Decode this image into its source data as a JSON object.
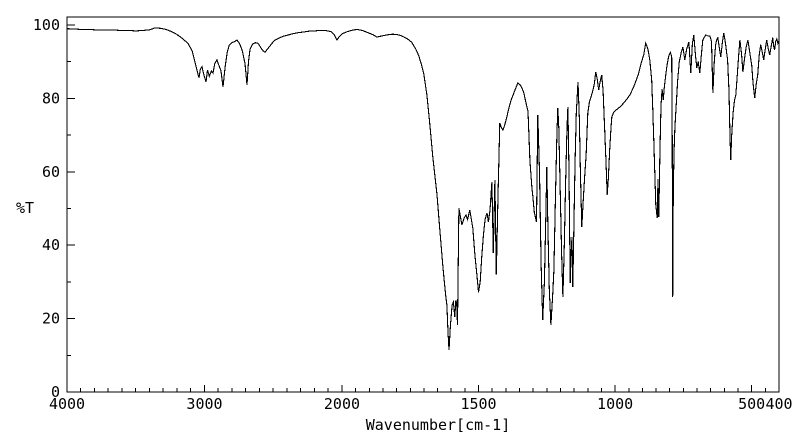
{
  "window": {
    "background": "#ffffff",
    "foreground": "#000000"
  },
  "chart_data": {
    "type": "line",
    "title": "",
    "xlabel": "Wavenumber[cm-1]",
    "ylabel": "%T",
    "grid": false,
    "legend": false,
    "x_axis": {
      "range": [
        4000,
        400
      ],
      "reversed": true,
      "scale_break_at": 2000,
      "note": "region 4000-2000 compressed, 2000-400 expanded (double scale)",
      "major_ticks": [
        4000,
        3000,
        2000,
        1500,
        1000,
        500,
        400
      ],
      "major_tick_labels": [
        "4000",
        "3000",
        "2000",
        "1500",
        "1000",
        "500",
        "400"
      ],
      "minor_tick_step_above_break": 100,
      "minor_tick_step_below_break": 50
    },
    "y_axis": {
      "range": [
        0,
        100
      ],
      "major_ticks": [
        0,
        20,
        40,
        60,
        80,
        100
      ],
      "major_tick_labels": [
        "0",
        "20",
        "40",
        "60",
        "80",
        "100"
      ],
      "minor_tick_step": 10
    },
    "series": [
      {
        "name": "ir-transmittance-trace",
        "color": "#000000",
        "points": [
          [
            4000,
            99
          ],
          [
            3950,
            98.9
          ],
          [
            3900,
            98.8
          ],
          [
            3850,
            98.8
          ],
          [
            3800,
            98.7
          ],
          [
            3750,
            98.7
          ],
          [
            3700,
            98.6
          ],
          [
            3650,
            98.6
          ],
          [
            3600,
            98.5
          ],
          [
            3550,
            98.5
          ],
          [
            3500,
            98.4
          ],
          [
            3450,
            98.5
          ],
          [
            3400,
            98.7
          ],
          [
            3360,
            99.2
          ],
          [
            3320,
            99.1
          ],
          [
            3280,
            98.8
          ],
          [
            3240,
            98.2
          ],
          [
            3200,
            97.4
          ],
          [
            3160,
            96.3
          ],
          [
            3120,
            95
          ],
          [
            3090,
            93
          ],
          [
            3070,
            90
          ],
          [
            3050,
            87
          ],
          [
            3040,
            85.6
          ],
          [
            3030,
            88
          ],
          [
            3018,
            88.6
          ],
          [
            3005,
            86.5
          ],
          [
            2989,
            84.5
          ],
          [
            2978,
            87.7
          ],
          [
            2965,
            86
          ],
          [
            2950,
            87.5
          ],
          [
            2938,
            86.9
          ],
          [
            2925,
            89.5
          ],
          [
            2909,
            90.5
          ],
          [
            2895,
            89
          ],
          [
            2880,
            87.5
          ],
          [
            2865,
            83.1
          ],
          [
            2850,
            88.5
          ],
          [
            2835,
            92.5
          ],
          [
            2820,
            94.5
          ],
          [
            2800,
            95.2
          ],
          [
            2780,
            95.5
          ],
          [
            2764,
            95.9
          ],
          [
            2745,
            95
          ],
          [
            2725,
            93
          ],
          [
            2705,
            89.5
          ],
          [
            2691,
            83.7
          ],
          [
            2680,
            90
          ],
          [
            2668,
            93.5
          ],
          [
            2650,
            94.8
          ],
          [
            2630,
            95.2
          ],
          [
            2610,
            95
          ],
          [
            2590,
            93.8
          ],
          [
            2575,
            93
          ],
          [
            2560,
            92.6
          ],
          [
            2545,
            93.3
          ],
          [
            2530,
            94
          ],
          [
            2510,
            95
          ],
          [
            2490,
            95.8
          ],
          [
            2460,
            96.4
          ],
          [
            2430,
            96.9
          ],
          [
            2400,
            97.2
          ],
          [
            2360,
            97.6
          ],
          [
            2320,
            97.9
          ],
          [
            2280,
            98.1
          ],
          [
            2240,
            98.3
          ],
          [
            2200,
            98.4
          ],
          [
            2160,
            98.5
          ],
          [
            2120,
            98.5
          ],
          [
            2080,
            98.2
          ],
          [
            2055,
            97.3
          ],
          [
            2036,
            95.9
          ],
          [
            2020,
            96.8
          ],
          [
            2000,
            97.6
          ],
          [
            1980,
            98.2
          ],
          [
            1960,
            98.6
          ],
          [
            1945,
            98.8
          ],
          [
            1925,
            98.5
          ],
          [
            1905,
            97.9
          ],
          [
            1885,
            97.3
          ],
          [
            1872,
            96.7
          ],
          [
            1855,
            97
          ],
          [
            1835,
            97.3
          ],
          [
            1815,
            97.5
          ],
          [
            1800,
            97.4
          ],
          [
            1788,
            97.2
          ],
          [
            1775,
            96.8
          ],
          [
            1760,
            96.2
          ],
          [
            1745,
            95.3
          ],
          [
            1730,
            93.5
          ],
          [
            1720,
            91.8
          ],
          [
            1710,
            89.5
          ],
          [
            1700,
            86.5
          ],
          [
            1689,
            80.9
          ],
          [
            1678,
            72.7
          ],
          [
            1667,
            63.8
          ],
          [
            1652,
            53.7
          ],
          [
            1641,
            43.6
          ],
          [
            1630,
            33.8
          ],
          [
            1620,
            26
          ],
          [
            1616,
            23.7
          ],
          [
            1612,
            16.3
          ],
          [
            1608,
            11.4
          ],
          [
            1603,
            18
          ],
          [
            1597,
            23.7
          ],
          [
            1592,
            24.5
          ],
          [
            1587,
            20.4
          ],
          [
            1583,
            25.1
          ],
          [
            1580,
            24
          ],
          [
            1577,
            18.3
          ],
          [
            1572,
            50.1
          ],
          [
            1561,
            45.5
          ],
          [
            1552,
            47.5
          ],
          [
            1546,
            48.2
          ],
          [
            1540,
            47
          ],
          [
            1532,
            49.6
          ],
          [
            1521,
            44.7
          ],
          [
            1513,
            37
          ],
          [
            1506,
            31.9
          ],
          [
            1500,
            27.2
          ],
          [
            1494,
            30
          ],
          [
            1488,
            37
          ],
          [
            1482,
            43
          ],
          [
            1476,
            47
          ],
          [
            1469,
            48.8
          ],
          [
            1464,
            46.3
          ],
          [
            1458,
            49.6
          ],
          [
            1451,
            57.2
          ],
          [
            1446,
            37.9
          ],
          [
            1440,
            57.8
          ],
          [
            1435,
            32
          ],
          [
            1429,
            52.3
          ],
          [
            1422,
            73.3
          ],
          [
            1416,
            72
          ],
          [
            1411,
            71.4
          ],
          [
            1405,
            72.5
          ],
          [
            1398,
            74.5
          ],
          [
            1390,
            77
          ],
          [
            1381,
            79.5
          ],
          [
            1372,
            81.2
          ],
          [
            1363,
            83
          ],
          [
            1356,
            84.2
          ],
          [
            1349,
            83.8
          ],
          [
            1342,
            83
          ],
          [
            1334,
            81.5
          ],
          [
            1327,
            79
          ],
          [
            1319,
            76.5
          ],
          [
            1312,
            63.2
          ],
          [
            1305,
            56
          ],
          [
            1301,
            53.1
          ],
          [
            1296,
            49
          ],
          [
            1288,
            46.3
          ],
          [
            1283,
            75.5
          ],
          [
            1277,
            60
          ],
          [
            1271,
            35
          ],
          [
            1265,
            19.6
          ],
          [
            1259,
            30
          ],
          [
            1253,
            50
          ],
          [
            1250,
            61.3
          ],
          [
            1246,
            45
          ],
          [
            1241,
            28
          ],
          [
            1235,
            18.3
          ],
          [
            1229,
            26
          ],
          [
            1224,
            33.2
          ],
          [
            1218,
            55
          ],
          [
            1213,
            70
          ],
          [
            1210,
            77.4
          ],
          [
            1206,
            72
          ],
          [
            1201,
            55
          ],
          [
            1196,
            38
          ],
          [
            1191,
            25.9
          ],
          [
            1186,
            40
          ],
          [
            1181,
            58
          ],
          [
            1176,
            72
          ],
          [
            1173,
            77.7
          ],
          [
            1169,
            60
          ],
          [
            1166,
            40
          ],
          [
            1164,
            29.7
          ],
          [
            1161,
            38
          ],
          [
            1158,
            42.2
          ],
          [
            1155,
            28.6
          ],
          [
            1151,
            45
          ],
          [
            1147,
            62
          ],
          [
            1142,
            76
          ],
          [
            1136,
            84.5
          ],
          [
            1131,
            75
          ],
          [
            1127,
            60
          ],
          [
            1122,
            45
          ],
          [
            1117,
            52
          ],
          [
            1112,
            58
          ],
          [
            1106,
            65
          ],
          [
            1100,
            76
          ],
          [
            1094,
            79
          ],
          [
            1088,
            80.5
          ],
          [
            1082,
            82
          ],
          [
            1076,
            84
          ],
          [
            1071,
            87.2
          ],
          [
            1066,
            85.5
          ],
          [
            1060,
            82.3
          ],
          [
            1055,
            84.5
          ],
          [
            1049,
            86.4
          ],
          [
            1044,
            82
          ],
          [
            1038,
            71.4
          ],
          [
            1033,
            62
          ],
          [
            1029,
            53.7
          ],
          [
            1025,
            58
          ],
          [
            1020,
            66
          ],
          [
            1015,
            72
          ],
          [
            1012,
            74.9
          ],
          [
            1005,
            76.2
          ],
          [
            997,
            76.8
          ],
          [
            985,
            77.5
          ],
          [
            975,
            78.2
          ],
          [
            960,
            79.5
          ],
          [
            945,
            81
          ],
          [
            930,
            83.5
          ],
          [
            915,
            86.5
          ],
          [
            905,
            89.5
          ],
          [
            895,
            92
          ],
          [
            888,
            95.1
          ],
          [
            880,
            93.5
          ],
          [
            873,
            90.5
          ],
          [
            866,
            85
          ],
          [
            862,
            76.8
          ],
          [
            857,
            65
          ],
          [
            851,
            51
          ],
          [
            846,
            47.4
          ],
          [
            843,
            58
          ],
          [
            840,
            47.7
          ],
          [
            836,
            65
          ],
          [
            832,
            78
          ],
          [
            828,
            82.5
          ],
          [
            824,
            79.5
          ],
          [
            820,
            83
          ],
          [
            815,
            86
          ],
          [
            810,
            89
          ],
          [
            804,
            91.5
          ],
          [
            798,
            92.5
          ],
          [
            793,
            91.5
          ],
          [
            791,
            70
          ],
          [
            789,
            25.9
          ],
          [
            787,
            55
          ],
          [
            784,
            66
          ],
          [
            781,
            72
          ],
          [
            778,
            76.3
          ],
          [
            771,
            85
          ],
          [
            765,
            90
          ],
          [
            758,
            92.5
          ],
          [
            752,
            94
          ],
          [
            745,
            90.5
          ],
          [
            738,
            93.5
          ],
          [
            730,
            95.4
          ],
          [
            723,
            86.9
          ],
          [
            717,
            95
          ],
          [
            712,
            97.3
          ],
          [
            706,
            92
          ],
          [
            701,
            88.3
          ],
          [
            696,
            90
          ],
          [
            690,
            86.9
          ],
          [
            684,
            92
          ],
          [
            679,
            95.9
          ],
          [
            672,
            96.8
          ],
          [
            668,
            97.3
          ],
          [
            660,
            97
          ],
          [
            653,
            97
          ],
          [
            647,
            95.5
          ],
          [
            642,
            81.5
          ],
          [
            637,
            90
          ],
          [
            632,
            94.5
          ],
          [
            628,
            96
          ],
          [
            624,
            96.5
          ],
          [
            618,
            93.5
          ],
          [
            613,
            91.3
          ],
          [
            607,
            95.5
          ],
          [
            602,
            97.8
          ],
          [
            596,
            95
          ],
          [
            592,
            92.5
          ],
          [
            588,
            90.5
          ],
          [
            583,
            82
          ],
          [
            580,
            72
          ],
          [
            577,
            63.2
          ],
          [
            573,
            70
          ],
          [
            568,
            76
          ],
          [
            563,
            79.5
          ],
          [
            558,
            80.9
          ],
          [
            553,
            86
          ],
          [
            548,
            91.5
          ],
          [
            543,
            95.9
          ],
          [
            537,
            92
          ],
          [
            532,
            87.2
          ],
          [
            526,
            91
          ],
          [
            520,
            94
          ],
          [
            514,
            95.9
          ],
          [
            508,
            93
          ],
          [
            503,
            90.5
          ],
          [
            500,
            89.1
          ],
          [
            495,
            84
          ],
          [
            489,
            80.1
          ],
          [
            483,
            84
          ],
          [
            478,
            86.4
          ],
          [
            472,
            92
          ],
          [
            467,
            94.6
          ],
          [
            461,
            92.5
          ],
          [
            456,
            90.5
          ],
          [
            450,
            93.5
          ],
          [
            445,
            95.9
          ],
          [
            439,
            93.5
          ],
          [
            434,
            91.8
          ],
          [
            428,
            94.5
          ],
          [
            423,
            96.5
          ],
          [
            419,
            94
          ],
          [
            416,
            93.2
          ],
          [
            412,
            95.5
          ],
          [
            408,
            96.2
          ],
          [
            404,
            95
          ],
          [
            400,
            95.8
          ]
        ]
      }
    ]
  }
}
